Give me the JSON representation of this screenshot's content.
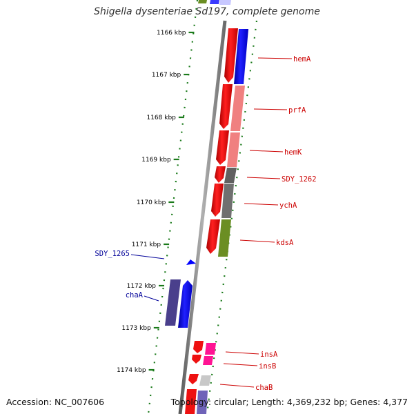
{
  "title": "Shigella dysenteriae Sd197, complete genome",
  "footer": {
    "accession": "Accession: NC_007606",
    "topology": "Topology: circular; Length: 4,369,232 bp; Genes: 4,377"
  },
  "colors": {
    "forward_gene": "#ff0000",
    "reverse_gene": "#0000ff",
    "right_label": "#cc0000",
    "left_label": "#000099",
    "backbone": "#808080",
    "tick": "#1a7a1a"
  },
  "ticks": [
    "1166 kbp",
    "1167 kbp",
    "1168 kbp",
    "1169 kbp",
    "1170 kbp",
    "1171 kbp",
    "1172 kbp",
    "1173 kbp",
    "1174 kbp"
  ],
  "right_labels": [
    "hemA",
    "prfA",
    "hemK",
    "SDY_1262",
    "ychA",
    "kdsA",
    "insA",
    "insB",
    "chaB"
  ],
  "left_labels": [
    "SDY_1265",
    "chaA"
  ]
}
